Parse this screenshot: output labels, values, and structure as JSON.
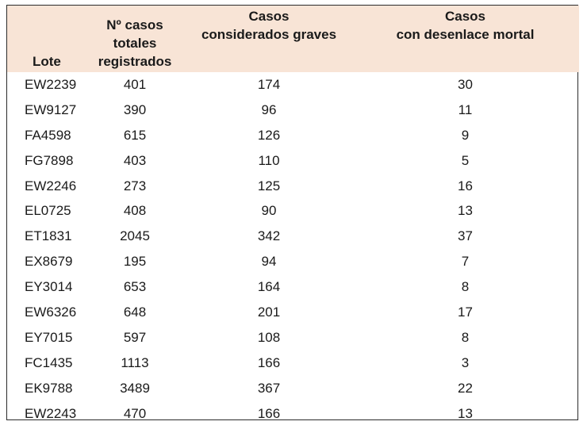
{
  "table": {
    "headers": {
      "lote": "Lote",
      "total": [
        "Nº casos",
        "totales",
        "registrados"
      ],
      "graves": [
        "Casos",
        "considerados graves"
      ],
      "mortal": [
        "Casos",
        "con desenlace mortal"
      ]
    },
    "rows": [
      {
        "lote": "EW2239",
        "total": "401",
        "graves": "174",
        "mortal": "30"
      },
      {
        "lote": "EW9127",
        "total": "390",
        "graves": "96",
        "mortal": "11"
      },
      {
        "lote": "FA4598",
        "total": "615",
        "graves": "126",
        "mortal": "9"
      },
      {
        "lote": "FG7898",
        "total": "403",
        "graves": "110",
        "mortal": "5"
      },
      {
        "lote": "EW2246",
        "total": "273",
        "graves": "125",
        "mortal": "16"
      },
      {
        "lote": "EL0725",
        "total": "408",
        "graves": "90",
        "mortal": "13"
      },
      {
        "lote": "ET1831",
        "total": "2045",
        "graves": "342",
        "mortal": "37"
      },
      {
        "lote": "EX8679",
        "total": "195",
        "graves": "94",
        "mortal": "7"
      },
      {
        "lote": "EY3014",
        "total": "653",
        "graves": "164",
        "mortal": "8"
      },
      {
        "lote": "EW6326",
        "total": "648",
        "graves": "201",
        "mortal": "17"
      },
      {
        "lote": "EY7015",
        "total": "597",
        "graves": "108",
        "mortal": "8"
      },
      {
        "lote": "FC1435",
        "total": "1113",
        "graves": "166",
        "mortal": "3"
      },
      {
        "lote": "EK9788",
        "total": "3489",
        "graves": "367",
        "mortal": "22"
      },
      {
        "lote": "EW2243",
        "total": "470",
        "graves": "166",
        "mortal": "13"
      }
    ]
  },
  "colors": {
    "header_background": "#f8e4d6",
    "border": "#2b2b2b",
    "text": "#1a1a1a"
  }
}
